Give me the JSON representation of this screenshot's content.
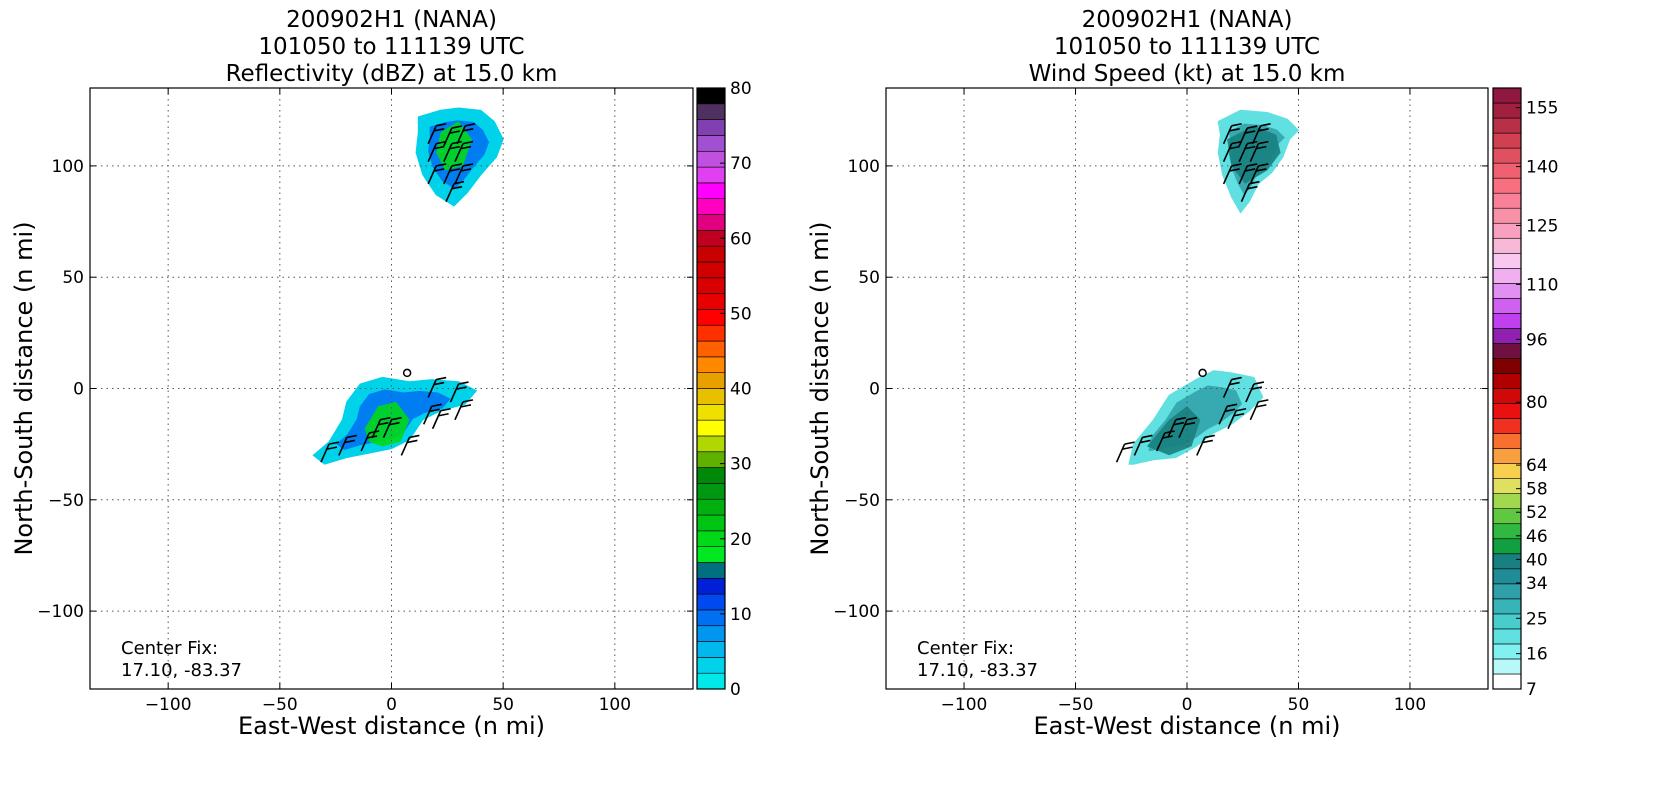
{
  "chart_data": [
    {
      "type": "heatmap",
      "title_lines": [
        "200902H1 (NANA)",
        "101050 to 111139 UTC",
        "Reflectivity (dBZ) at 15.0 km"
      ],
      "xlabel": "East-West distance (n mi)",
      "ylabel": "North-South distance (n mi)",
      "xlim": [
        -135,
        135
      ],
      "ylim": [
        -135,
        135
      ],
      "xticks": [
        -100,
        -50,
        0,
        50,
        100
      ],
      "yticks": [
        -100,
        -50,
        0,
        50,
        100
      ],
      "xtick_labels": [
        "−100",
        "−50",
        "0",
        "50",
        "100"
      ],
      "ytick_labels": [
        "−100",
        "−50",
        "0",
        "50",
        "100"
      ],
      "grid": true,
      "annotation": {
        "line1": "Center Fix:",
        "line2": "17.10, -83.37"
      },
      "colorbar": {
        "vmin": 0,
        "vmax": 80,
        "ticks": [
          0,
          10,
          20,
          30,
          40,
          50,
          60,
          70,
          80
        ],
        "tick_labels": [
          "0",
          "10",
          "20",
          "30",
          "40",
          "50",
          "60",
          "70",
          "80"
        ],
        "colors": [
          "#00e8e8",
          "#00d2ea",
          "#00b8ee",
          "#0096f0",
          "#0070f2",
          "#0048f0",
          "#0020d8",
          "#007080",
          "#00e820",
          "#00d818",
          "#00c414",
          "#00b010",
          "#009810",
          "#008808",
          "#60b000",
          "#b0d800",
          "#ffff00",
          "#f0e000",
          "#e8c000",
          "#e8a000",
          "#ff8800",
          "#ff6000",
          "#ff3000",
          "#ff0000",
          "#e80000",
          "#d80000",
          "#d00000",
          "#c80000",
          "#c00020",
          "#e00080",
          "#ff00c0",
          "#ff00ff",
          "#e040f0",
          "#c050e0",
          "#a050d0",
          "#8040b0",
          "#503060",
          "#000000"
        ]
      },
      "regions": [
        {
          "label": "north cell",
          "points": [
            [
              12,
              122
            ],
            [
              22,
              125
            ],
            [
              30,
              126
            ],
            [
              40,
              125
            ],
            [
              46,
              120
            ],
            [
              50,
              112
            ],
            [
              47,
              104
            ],
            [
              40,
              96
            ],
            [
              34,
              88
            ],
            [
              28,
              82
            ],
            [
              20,
              87
            ],
            [
              14,
              96
            ],
            [
              11,
              106
            ],
            [
              12,
              115
            ]
          ]
        },
        {
          "label": "central cell",
          "points": [
            [
              -35,
              -30
            ],
            [
              -28,
              -24
            ],
            [
              -22,
              -14
            ],
            [
              -20,
              -6
            ],
            [
              -14,
              2
            ],
            [
              -4,
              5
            ],
            [
              8,
              3
            ],
            [
              18,
              4
            ],
            [
              30,
              3
            ],
            [
              38,
              -1
            ],
            [
              33,
              -7
            ],
            [
              22,
              -10
            ],
            [
              14,
              -14
            ],
            [
              8,
              -23
            ],
            [
              0,
              -27
            ],
            [
              -10,
              -29
            ],
            [
              -20,
              -31
            ],
            [
              -30,
              -34
            ]
          ]
        }
      ],
      "cores": [
        {
          "label": "north core",
          "points": [
            [
              22,
              115
            ],
            [
              30,
              120
            ],
            [
              36,
              112
            ],
            [
              32,
              100
            ],
            [
              24,
              98
            ],
            [
              20,
              106
            ]
          ]
        },
        {
          "label": "central core",
          "points": [
            [
              -12,
              -18
            ],
            [
              -6,
              -8
            ],
            [
              2,
              -6
            ],
            [
              8,
              -14
            ],
            [
              4,
              -24
            ],
            [
              -4,
              -26
            ],
            [
              -10,
              -24
            ]
          ]
        }
      ],
      "barbs": [
        [
          20,
          118
        ],
        [
          27,
          117
        ],
        [
          33,
          118
        ],
        [
          20,
          110
        ],
        [
          27,
          110
        ],
        [
          32,
          110
        ],
        [
          20,
          100
        ],
        [
          27,
          100
        ],
        [
          32,
          100
        ],
        [
          28,
          92
        ],
        [
          20,
          4
        ],
        [
          30,
          2
        ],
        [
          32,
          -6
        ],
        [
          22,
          -10
        ],
        [
          0,
          -14
        ],
        [
          -5,
          -14
        ],
        [
          -10,
          -20
        ],
        [
          -20,
          -22
        ],
        [
          -28,
          -25
        ],
        [
          8,
          -22
        ],
        [
          18,
          -8
        ]
      ],
      "center_marker": [
        7,
        7
      ]
    },
    {
      "type": "heatmap",
      "title_lines": [
        "200902H1 (NANA)",
        "101050 to 111139 UTC",
        "Wind Speed (kt) at 15.0 km"
      ],
      "xlabel": "East-West distance (n mi)",
      "ylabel": "North-South distance (n mi)",
      "xlim": [
        -135,
        135
      ],
      "ylim": [
        -135,
        135
      ],
      "xticks": [
        -100,
        -50,
        0,
        50,
        100
      ],
      "yticks": [
        -100,
        -50,
        0,
        50,
        100
      ],
      "xtick_labels": [
        "−100",
        "−50",
        "0",
        "50",
        "100"
      ],
      "ytick_labels": [
        "−100",
        "−50",
        "0",
        "50",
        "100"
      ],
      "grid": true,
      "annotation": {
        "line1": "Center Fix:",
        "line2": "17.10, -83.37"
      },
      "colorbar": {
        "vmin": 7,
        "vmax": 160,
        "ticks": [
          7,
          16,
          25,
          34,
          40,
          46,
          52,
          58,
          64,
          80,
          96,
          110,
          125,
          140,
          155
        ],
        "tick_labels": [
          "7",
          "16",
          "25",
          "34",
          "40",
          "46",
          "52",
          "58",
          "64",
          "80",
          "96",
          "110",
          "125",
          "140",
          "155"
        ],
        "colors": [
          "#ffffff",
          "#b8f8f8",
          "#80f0f0",
          "#60e0e0",
          "#48cccc",
          "#38b4b8",
          "#30a0a8",
          "#208c98",
          "#188080",
          "#10a040",
          "#30b840",
          "#60c840",
          "#a0d850",
          "#e0e060",
          "#f8d050",
          "#f8a040",
          "#f87030",
          "#f03020",
          "#e81010",
          "#d00808",
          "#b00000",
          "#800000",
          "#701040",
          "#9020b0",
          "#c040f0",
          "#d060f0",
          "#e090f0",
          "#f0b0f0",
          "#f8c8f0",
          "#f8b8d8",
          "#f8a0c0",
          "#f890a8",
          "#f88098",
          "#f87080",
          "#f06070",
          "#e05060",
          "#d04050",
          "#b83048",
          "#a02040",
          "#901840"
        ]
      },
      "regions": [
        {
          "label": "north cell",
          "points": [
            [
              14,
              120
            ],
            [
              24,
              125
            ],
            [
              36,
              124
            ],
            [
              45,
              121
            ],
            [
              50,
              116
            ],
            [
              46,
              112
            ],
            [
              43,
              104
            ],
            [
              38,
              97
            ],
            [
              32,
              92
            ],
            [
              28,
              84
            ],
            [
              24,
              79
            ],
            [
              20,
              86
            ],
            [
              16,
              96
            ],
            [
              14,
              106
            ],
            [
              15,
              114
            ]
          ]
        },
        {
          "label": "central cell",
          "points": [
            [
              -26,
              -34
            ],
            [
              -24,
              -25
            ],
            [
              -15,
              -14
            ],
            [
              -8,
              -3
            ],
            [
              4,
              4
            ],
            [
              12,
              8
            ],
            [
              20,
              7
            ],
            [
              30,
              5
            ],
            [
              34,
              -4
            ],
            [
              28,
              -10
            ],
            [
              20,
              -16
            ],
            [
              12,
              -20
            ],
            [
              4,
              -26
            ],
            [
              -5,
              -31
            ],
            [
              -15,
              -32
            ],
            [
              -24,
              -34
            ]
          ]
        }
      ],
      "cores": [
        {
          "label": "north core",
          "points": [
            [
              18,
              112
            ],
            [
              30,
              118
            ],
            [
              40,
              114
            ],
            [
              42,
              106
            ],
            [
              36,
              98
            ],
            [
              26,
              92
            ],
            [
              20,
              100
            ]
          ]
        },
        {
          "label": "central core",
          "points": [
            [
              -18,
              -26
            ],
            [
              -8,
              -14
            ],
            [
              0,
              -8
            ],
            [
              6,
              -14
            ],
            [
              2,
              -26
            ],
            [
              -8,
              -30
            ]
          ]
        }
      ],
      "barbs": [
        [
          20,
          118
        ],
        [
          27,
          117
        ],
        [
          33,
          118
        ],
        [
          20,
          110
        ],
        [
          27,
          110
        ],
        [
          32,
          110
        ],
        [
          20,
          100
        ],
        [
          27,
          100
        ],
        [
          32,
          100
        ],
        [
          28,
          92
        ],
        [
          20,
          4
        ],
        [
          30,
          2
        ],
        [
          32,
          -6
        ],
        [
          22,
          -10
        ],
        [
          0,
          -14
        ],
        [
          -5,
          -14
        ],
        [
          -10,
          -20
        ],
        [
          -20,
          -22
        ],
        [
          -28,
          -25
        ],
        [
          8,
          -22
        ],
        [
          18,
          -8
        ]
      ],
      "center_marker": [
        7,
        7
      ]
    }
  ]
}
